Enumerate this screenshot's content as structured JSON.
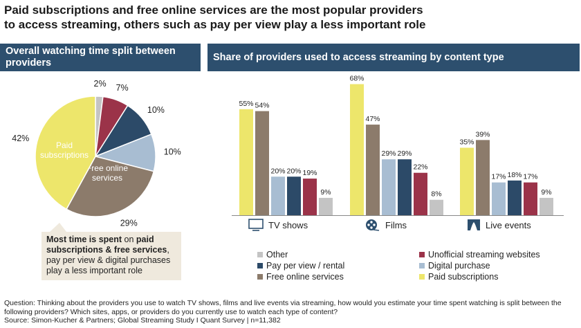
{
  "title_line1": "Paid subscriptions and free online services are the most popular providers",
  "title_line2": "to access streaming, others such as pay per view play a less important role",
  "left_header": "Overall watching time split between providers",
  "right_header": "Share of providers used to access streaming by content type",
  "callout": {
    "bold1": "Most time is spent",
    "normal1": " on ",
    "bold2": "paid subscriptions & free services",
    "normal2": ", pay per view & digital purchases play a less important role"
  },
  "footnote_question": "Question: Thinking about the providers you use to watch TV shows, films and live events via streaming, how would you estimate your time spent watching is split between the following providers? Which sites, apps, or providers do you currently use to watch each type of content?",
  "footnote_source": "Source: Simon-Kucher & Partners; Global Streaming Study I Quant Survey  |  n=11,382",
  "colors": {
    "paid": "#ede66b",
    "free": "#8c7b6b",
    "digital": "#a8bdd2",
    "ppv": "#2c4a68",
    "unofficial": "#9b3349",
    "other": "#c4c4c4",
    "header": "#2d4f6e"
  },
  "chart_data": [
    {
      "type": "pie",
      "title": "Overall watching time split between providers",
      "slices": [
        {
          "key": "other",
          "label": "Other",
          "value": 2,
          "text": "2%"
        },
        {
          "key": "unofficial",
          "label": "Unofficial streaming websites",
          "value": 7,
          "text": "7%"
        },
        {
          "key": "ppv",
          "label": "Pay per view / rental",
          "value": 10,
          "text": "10%"
        },
        {
          "key": "digital",
          "label": "Digital purchase",
          "value": 10,
          "text": "10%"
        },
        {
          "key": "free",
          "label": "Free online services",
          "value": 29,
          "text": "29%",
          "inner_label": [
            "Free online",
            "services"
          ]
        },
        {
          "key": "paid",
          "label": "Paid subscriptions",
          "value": 42,
          "text": "42%",
          "inner_label": [
            "Paid",
            "subscriptions"
          ]
        }
      ]
    },
    {
      "type": "bar",
      "title": "Share of providers used to access streaming by content type",
      "categories": [
        "TV shows",
        "Films",
        "Live events"
      ],
      "category_icons": [
        "tv-icon",
        "film-reel-icon",
        "stage-icon"
      ],
      "ylim": [
        0,
        70
      ],
      "series": [
        {
          "key": "paid",
          "name": "Paid subscriptions",
          "values": [
            55,
            68,
            35
          ]
        },
        {
          "key": "free",
          "name": "Free online services",
          "values": [
            54,
            47,
            39
          ]
        },
        {
          "key": "digital",
          "name": "Digital purchase",
          "values": [
            20,
            29,
            17
          ]
        },
        {
          "key": "ppv",
          "name": "Pay per view / rental",
          "values": [
            20,
            29,
            18
          ]
        },
        {
          "key": "unofficial",
          "name": "Unofficial streaming websites",
          "values": [
            19,
            22,
            17
          ]
        },
        {
          "key": "other",
          "name": "Other",
          "values": [
            9,
            8,
            9
          ]
        }
      ],
      "legend": [
        {
          "key": "other",
          "label": "Other"
        },
        {
          "key": "unofficial",
          "label": "Unofficial streaming websites"
        },
        {
          "key": "ppv",
          "label": "Pay per view / rental"
        },
        {
          "key": "digital",
          "label": "Digital purchase"
        },
        {
          "key": "free",
          "label": "Free online services"
        },
        {
          "key": "paid",
          "label": "Paid subscriptions"
        }
      ]
    }
  ]
}
